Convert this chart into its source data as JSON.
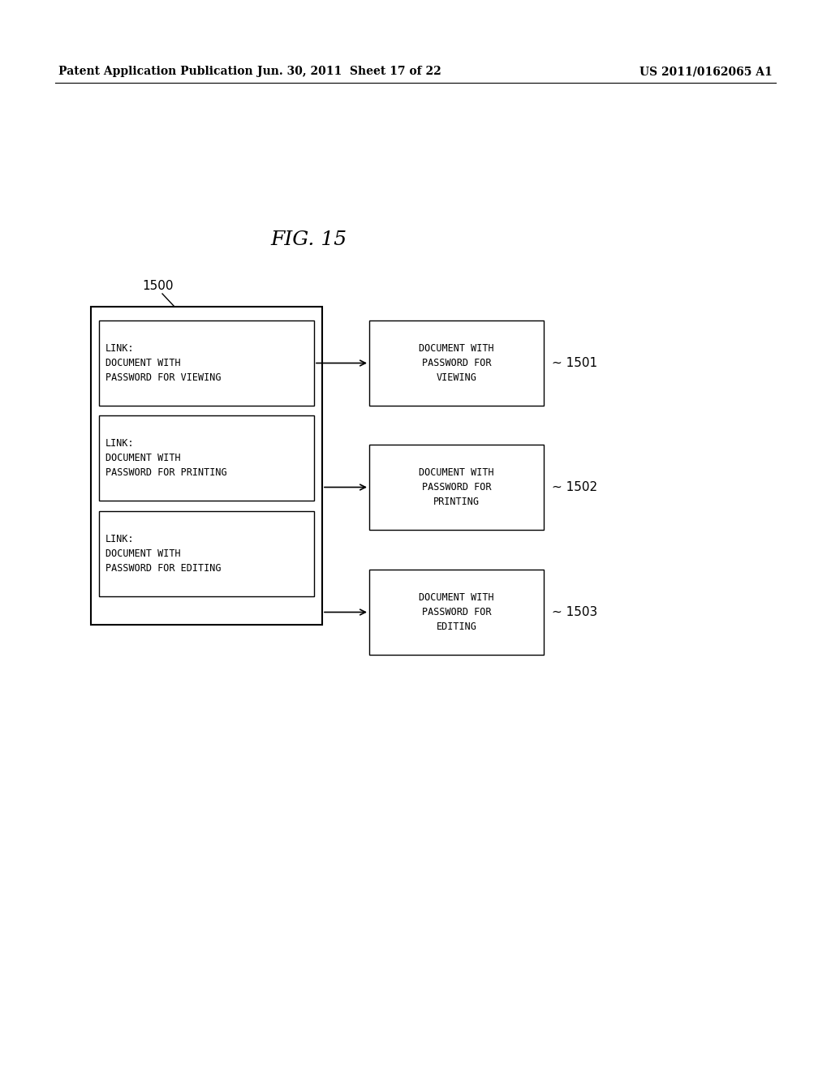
{
  "header_left": "Patent Application Publication",
  "header_mid": "Jun. 30, 2011  Sheet 17 of 22",
  "header_right": "US 2011/0162065 A1",
  "fig_title": "FIG. 15",
  "label_1500": "1500",
  "label_1501": "~ 1501",
  "label_1502": "~ 1502",
  "label_1503": "~ 1503",
  "inner_text1": "LINK:\nDOCUMENT WITH\nPASSWORD FOR VIEWING",
  "inner_text2": "LINK:\nDOCUMENT WITH\nPASSWORD FOR PRINTING",
  "inner_text3": "LINK:\nDOCUMENT WITH\nPASSWORD FOR EDITING",
  "right_text1": "DOCUMENT WITH\nPASSWORD FOR\nVIEWING",
  "right_text2": "DOCUMENT WITH\nPASSWORD FOR\nPRINTING",
  "right_text3": "DOCUMENT WITH\nPASSWORD FOR\nEDITING",
  "bg_color": "#ffffff",
  "box_color": "#000000",
  "text_color": "#000000"
}
